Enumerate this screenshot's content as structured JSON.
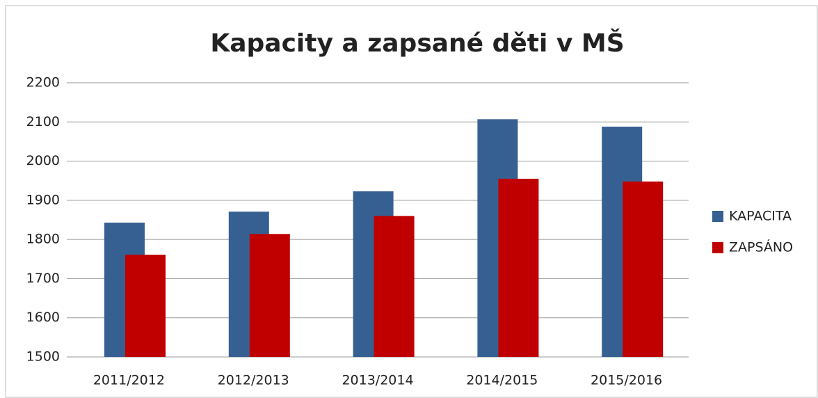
{
  "chart_data": {
    "type": "bar",
    "title": "Kapacity a zapsané děti v MŠ",
    "categories": [
      "2011/2012",
      "2012/2013",
      "2013/2014",
      "2014/2015",
      "2015/2016"
    ],
    "series": [
      {
        "name": "KAPACITA",
        "color": "#376092",
        "values": [
          1843,
          1871,
          1923,
          2107,
          2088
        ]
      },
      {
        "name": "ZAPSÁNO",
        "color": "#c00000",
        "values": [
          1761,
          1814,
          1860,
          1955,
          1948
        ]
      }
    ],
    "ylim": [
      1500,
      2200
    ],
    "yticks": [
      1500,
      1600,
      1700,
      1800,
      1900,
      2000,
      2100,
      2200
    ],
    "grid": true,
    "legend": "right"
  }
}
